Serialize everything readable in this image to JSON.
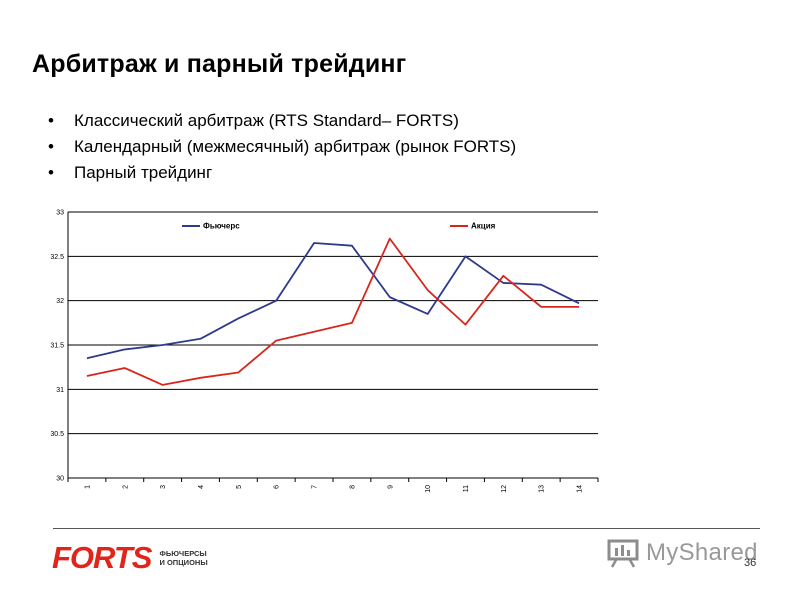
{
  "slide": {
    "title": "Арбитраж и парный трейдинг",
    "bullets": [
      "Классический арбитраж (RTS Standard– FORTS)",
      "Календарный (межмесячный) арбитраж  (рынок FORTS)",
      "Парный трейдинг"
    ],
    "bullet_symbol": "•",
    "page_number": "36"
  },
  "logo": {
    "word": "FORTS",
    "subtitle_line1": "ФЬЮЧЕРСЫ",
    "subtitle_line2": "И ОПЦИОНЫ",
    "color": "#e0261a"
  },
  "watermark": {
    "text": "MyShared"
  },
  "chart_data": {
    "type": "line",
    "categories": [
      "1",
      "2",
      "3",
      "4",
      "5",
      "6",
      "7",
      "8",
      "9",
      "10",
      "11",
      "12",
      "13",
      "14"
    ],
    "ylim": [
      30,
      33
    ],
    "yticks": [
      "30",
      "30.5",
      "31",
      "31.5",
      "32",
      "32.5",
      "33"
    ],
    "grid": true,
    "legend_position": "top",
    "series": [
      {
        "name": "Фьючерс",
        "color": "#2e3a8c",
        "values": [
          31.35,
          31.45,
          31.5,
          31.57,
          31.8,
          32.0,
          32.65,
          32.62,
          32.04,
          31.85,
          32.5,
          32.2,
          32.18,
          31.97
        ]
      },
      {
        "name": "Акция",
        "color": "#d9261c",
        "values": [
          31.15,
          31.24,
          31.05,
          31.13,
          31.19,
          31.55,
          31.65,
          31.75,
          32.7,
          32.12,
          31.73,
          32.28,
          31.93,
          31.93
        ]
      }
    ]
  }
}
